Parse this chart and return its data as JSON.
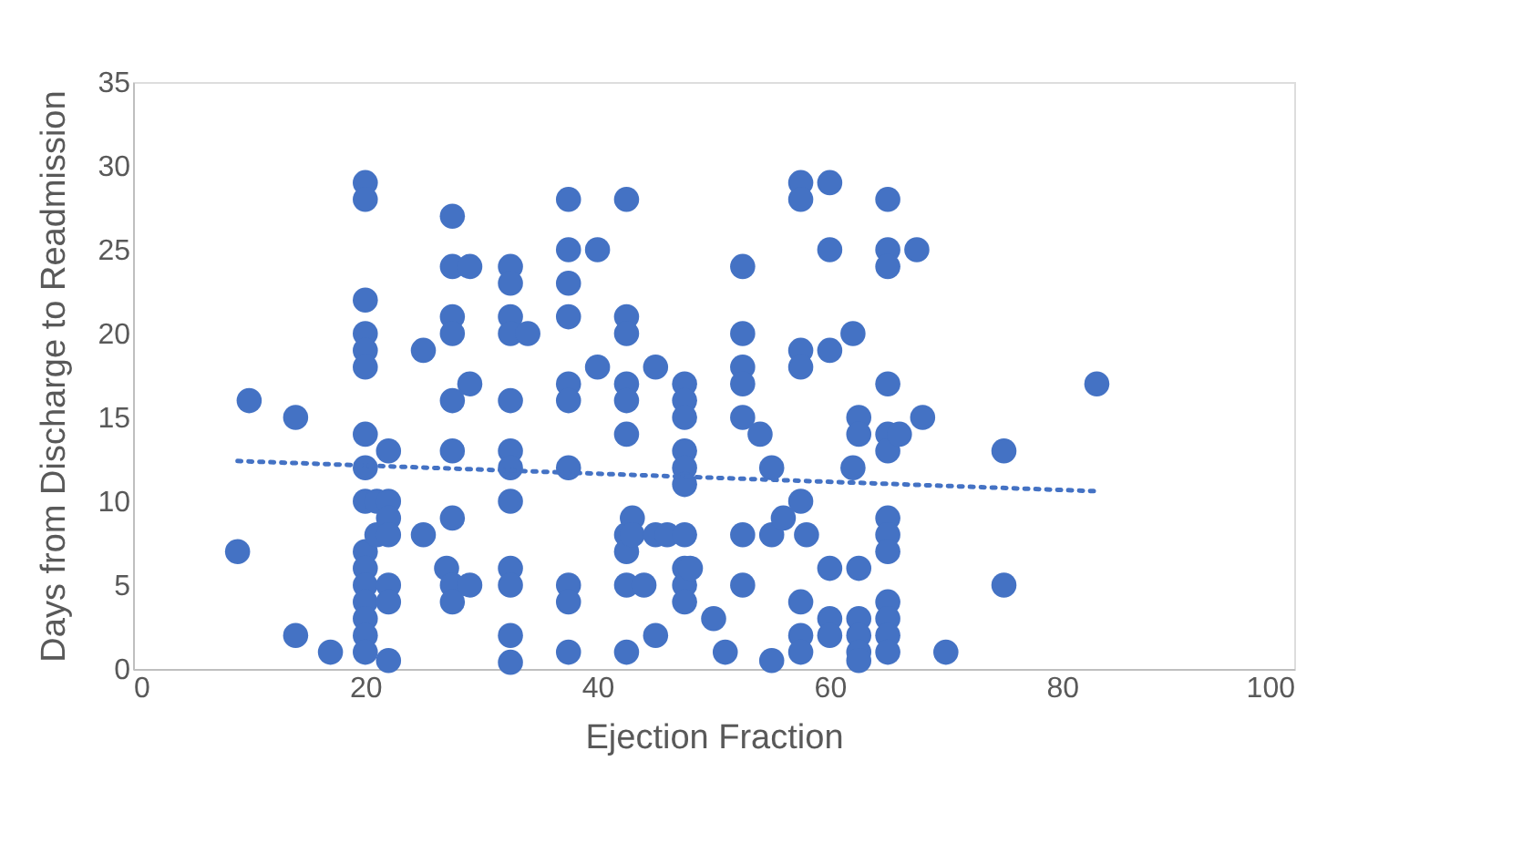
{
  "chart_data": {
    "type": "scatter",
    "xlabel": "Ejection Fraction",
    "ylabel": "Days from Discharge to Readmission",
    "xlim": [
      0,
      100
    ],
    "xticks": [
      0,
      20,
      40,
      60,
      80,
      100
    ],
    "ylim": [
      0,
      35
    ],
    "yticks": [
      0,
      5,
      10,
      15,
      20,
      25,
      30,
      35
    ],
    "grid": false,
    "series": [
      {
        "type": "scatter",
        "marker": "circle",
        "color": "#4472c4",
        "x": [
          9,
          10,
          14,
          14,
          17,
          20,
          20,
          20,
          20,
          20,
          20,
          20,
          20,
          20,
          20,
          20,
          20,
          20,
          20,
          20,
          20,
          21,
          21,
          22,
          22,
          22,
          22,
          22,
          22,
          22,
          25,
          25,
          27,
          27.5,
          27.5,
          27.5,
          27.5,
          27.5,
          27.5,
          27.5,
          27.5,
          27.5,
          29,
          29,
          29,
          32.5,
          32.5,
          32.5,
          32.5,
          32.5,
          32.5,
          32.5,
          32.5,
          32.5,
          32.5,
          32.5,
          32.5,
          34,
          37.5,
          37.5,
          37.5,
          37.5,
          37.5,
          37.5,
          37.5,
          37.5,
          37.5,
          37.5,
          40,
          40,
          42.5,
          42.5,
          42.5,
          42.5,
          42.5,
          42.5,
          42.5,
          42.5,
          42.5,
          42.5,
          43,
          43,
          44,
          45,
          45,
          45,
          46,
          47.5,
          47.5,
          47.5,
          47.5,
          47.5,
          47.5,
          47.5,
          47.5,
          47.5,
          47.5,
          48,
          50,
          51,
          52.5,
          52.5,
          52.5,
          52.5,
          52.5,
          52.5,
          52.5,
          54,
          55,
          55,
          55,
          56,
          57.5,
          57.5,
          57.5,
          57.5,
          57.5,
          57.5,
          57.5,
          57.5,
          58,
          60,
          60,
          60,
          60,
          60,
          60,
          62,
          62,
          62.5,
          62.5,
          62.5,
          62.5,
          62.5,
          62.5,
          62.5,
          65,
          65,
          65,
          65,
          65,
          65,
          65,
          65,
          65,
          65,
          65,
          65,
          65,
          66,
          67.5,
          68,
          70,
          75,
          75,
          83
        ],
        "values": [
          7,
          16,
          15,
          2,
          1,
          29,
          28,
          22,
          20,
          19,
          18,
          14,
          12,
          10,
          7,
          6,
          5,
          4,
          3,
          2,
          1,
          10,
          8,
          13,
          10,
          9,
          8,
          5,
          4,
          0.5,
          19,
          8,
          6,
          27,
          24,
          21,
          20,
          16,
          13,
          9,
          5,
          4,
          24,
          17,
          5,
          24,
          23,
          21,
          20,
          16,
          13,
          12,
          10,
          6,
          5,
          2,
          0.4,
          20,
          28,
          25,
          23,
          21,
          17,
          16,
          12,
          5,
          4,
          1,
          25,
          18,
          28,
          21,
          20,
          17,
          16,
          14,
          8,
          7,
          5,
          1,
          9,
          8,
          5,
          18,
          8,
          2,
          8,
          17,
          16,
          15,
          13,
          12,
          11,
          8,
          6,
          5,
          4,
          6,
          3,
          1,
          24,
          20,
          18,
          17,
          15,
          8,
          5,
          14,
          12,
          8,
          0.5,
          9,
          29,
          28,
          19,
          18,
          10,
          4,
          2,
          1,
          8,
          29,
          25,
          19,
          6,
          3,
          2,
          20,
          12,
          15,
          14,
          6,
          3,
          2,
          1,
          0.5,
          28,
          25,
          24,
          17,
          14,
          13,
          9,
          8,
          7,
          4,
          3,
          2,
          1,
          14,
          25,
          15,
          1,
          13,
          5,
          17
        ]
      },
      {
        "type": "line",
        "line_style": "dotted",
        "marker": "none",
        "color": "#4472c4",
        "x": [
          9,
          83
        ],
        "values": [
          12.4,
          10.6
        ]
      }
    ]
  }
}
